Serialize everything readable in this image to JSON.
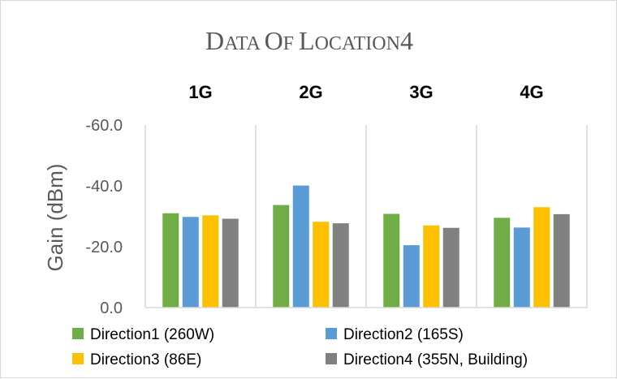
{
  "chart_data": {
    "type": "bar",
    "title": "Data of Location4",
    "categories": [
      "1G",
      "2G",
      "3G",
      "4G"
    ],
    "ylabel": "Gain (dBm)",
    "xlabel": "",
    "ylim": [
      0,
      -60
    ],
    "y_axis_reversed": true,
    "yticks": [
      "-60.0",
      "-40.0",
      "-20.0",
      "0.0"
    ],
    "ytick_values": [
      -60,
      -40,
      -20,
      0
    ],
    "grid": false,
    "legend_position": "bottom",
    "series": [
      {
        "name": "Direction1 (260W)",
        "color": "#70ad47",
        "values": [
          -31.0,
          -33.7,
          -30.8,
          -29.5
        ]
      },
      {
        "name": "Direction2 (165S)",
        "color": "#5b9bd5",
        "values": [
          -29.8,
          -40.1,
          -20.5,
          -26.3
        ]
      },
      {
        "name": "Direction3 (86E)",
        "color": "#ffc000",
        "values": [
          -30.3,
          -28.2,
          -27.0,
          -33.0
        ]
      },
      {
        "name": "Direction4 (355N, Building)",
        "color": "#808080",
        "values": [
          -29.2,
          -27.7,
          -26.2,
          -30.7
        ]
      }
    ]
  }
}
